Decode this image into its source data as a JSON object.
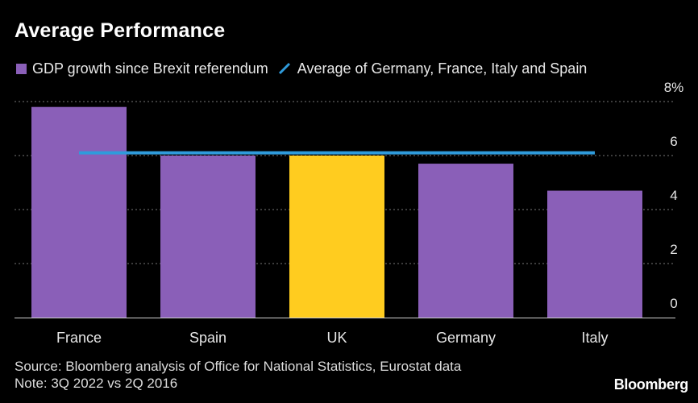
{
  "colors": {
    "background": "#000000",
    "bar": "#8a5fb8",
    "highlight_bar": "#ffcc1f",
    "average_line": "#2f9bdb",
    "grid": "#777777",
    "axis": "#cfcfcf"
  },
  "legend": {
    "gdp_label": "GDP growth since Brexit referendum",
    "avg_label": "Average of Germany, France, Italy and Spain"
  },
  "footer": {
    "source": "Source: Bloomberg analysis of Office for National Statistics, Eurostat data",
    "note": "Note: 3Q 2022 vs 2Q 2016",
    "brand": "Bloomberg"
  },
  "chart_data": {
    "type": "bar",
    "title": "Average Performance",
    "categories": [
      "France",
      "Spain",
      "UK",
      "Germany",
      "Italy"
    ],
    "values": [
      7.8,
      6.0,
      6.0,
      5.7,
      4.7
    ],
    "highlight": "UK",
    "series": [
      {
        "name": "GDP growth since Brexit referendum",
        "values": [
          7.8,
          6.0,
          6.0,
          5.7,
          4.7
        ]
      }
    ],
    "reference_line": {
      "name": "Average of Germany, France, Italy and Spain",
      "value": 6.1
    },
    "ylim": [
      0,
      8
    ],
    "yticks": [
      0,
      2,
      4,
      6,
      8
    ],
    "ytick_labels": [
      "0",
      "2",
      "4",
      "6",
      "8%"
    ],
    "xlabel": "",
    "ylabel": "",
    "grid": true,
    "legend_position": "top-left"
  }
}
